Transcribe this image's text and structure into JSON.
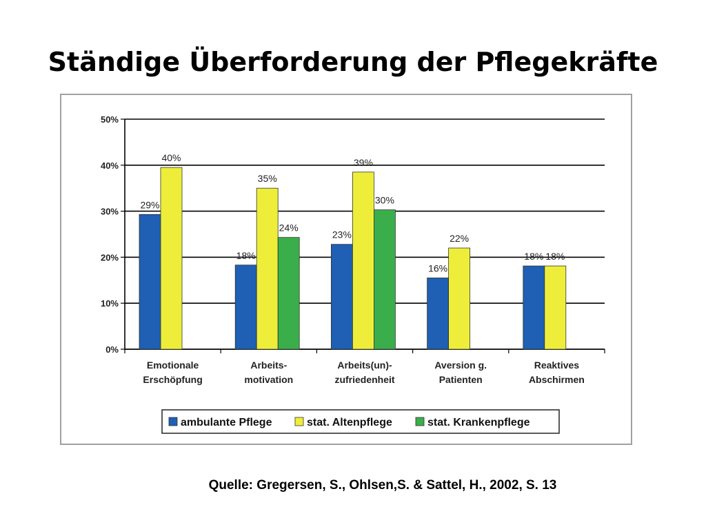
{
  "slide": {
    "title": "Ständige Überforderung der Pflegekräfte",
    "source": "Quelle: Gregersen, S., Ohlsen,S. & Sattel, H., 2002, S. 13"
  },
  "chart_data": {
    "type": "bar",
    "title": "",
    "xlabel": "",
    "ylabel": "",
    "ylim": [
      0,
      50
    ],
    "ytick_labels": [
      "0%",
      "10%",
      "20%",
      "30%",
      "40%",
      "50%"
    ],
    "grid": true,
    "legend_position": "bottom",
    "categories": [
      [
        "Emotionale",
        "Erschöpfung"
      ],
      [
        "Arbeits-",
        "motivation"
      ],
      [
        "Arbeits(un)-",
        "zufriedenheit"
      ],
      [
        "Aversion g.",
        "Patienten"
      ],
      [
        "Reaktives",
        "Abschirmen"
      ]
    ],
    "series": [
      {
        "name": "ambulante Pflege",
        "color": "#1f5fb4",
        "values": [
          29.3,
          18.3,
          22.8,
          15.5,
          18.1
        ],
        "labels": [
          "29%",
          "18%",
          "23%",
          "16%",
          "18%"
        ]
      },
      {
        "name": "stat. Altenpflege",
        "color": "#eeee3a",
        "values": [
          39.5,
          35,
          38.5,
          22,
          18.1
        ],
        "labels": [
          "40%",
          "35%",
          "39%",
          "22%",
          "18%"
        ]
      },
      {
        "name": "stat. Krankenpflege",
        "color": "#3aae4a",
        "values": [
          null,
          24.3,
          30.3,
          null,
          null
        ],
        "labels": [
          null,
          "24%",
          "30%",
          null,
          null
        ]
      }
    ]
  }
}
